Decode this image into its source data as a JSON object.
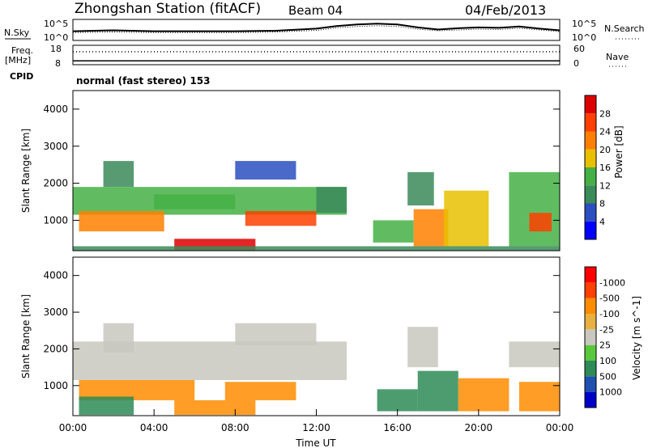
{
  "header": {
    "station": "Zhongshan Station (fitACF)",
    "beam": "Beam 04",
    "date": "04/Feb/2013"
  },
  "top_panels": {
    "nsky_label": "N.Sky",
    "nsearch_label": "N.Search",
    "noise_ticks": [
      "10^5",
      "10^0"
    ],
    "freq_label_1": "Freq.",
    "freq_label_2": "[MHz]",
    "freq_ticks": [
      "18",
      "8"
    ],
    "nave_label": "Nave",
    "nave_ticks": [
      "60",
      "0"
    ],
    "cpid_label": "CPID",
    "cpid_text": "normal (fast stereo) 153"
  },
  "x_axis": {
    "ticks": [
      "00:00",
      "04:00",
      "08:00",
      "12:00",
      "16:00",
      "20:00",
      "00:00"
    ],
    "label": "Time UT"
  },
  "colors": {
    "power_scale": [
      "#0000ff",
      "#2c4fbf",
      "#3b8a5a",
      "#45b045",
      "#e8c000",
      "#ff8000",
      "#ff4000",
      "#dd0000"
    ],
    "velocity_scale": [
      "#0000c8",
      "#2050b0",
      "#2e8b57",
      "#5ac83c",
      "#c8c8c0",
      "#e8b040",
      "#ff8c00",
      "#ff4000",
      "#ff0000"
    ]
  },
  "chart_data": [
    {
      "type": "line",
      "panel": "noise",
      "series": [
        {
          "name": "N.Sky",
          "x": [
            0,
            2,
            4,
            6,
            8,
            10,
            12,
            13,
            14,
            15,
            16,
            17,
            18,
            19,
            20,
            21,
            22,
            23,
            24
          ],
          "y": [
            2.2,
            2.4,
            2.2,
            2.2,
            2.2,
            2.3,
            2.8,
            3.4,
            3.8,
            4.0,
            3.8,
            3.1,
            2.6,
            2.9,
            3.1,
            3.0,
            3.3,
            2.8,
            2.4
          ]
        },
        {
          "name": "N.Search",
          "x": [
            0,
            2,
            4,
            6,
            8,
            10,
            12,
            13,
            14,
            15,
            16,
            17,
            18,
            19,
            20,
            21,
            22,
            23,
            24
          ],
          "y": [
            1.9,
            2.0,
            1.9,
            1.9,
            1.9,
            2.0,
            2.4,
            3.0,
            3.3,
            3.5,
            3.3,
            2.7,
            2.3,
            2.5,
            2.7,
            2.6,
            2.9,
            2.5,
            2.1
          ]
        }
      ],
      "ylim": [
        0,
        5
      ],
      "xlim": [
        0,
        24
      ]
    },
    {
      "type": "line",
      "panel": "frequency_nave",
      "series": [
        {
          "name": "Freq.",
          "x": [
            0,
            24
          ],
          "y": [
            10,
            10
          ]
        },
        {
          "name": "Nave",
          "x": [
            0,
            24
          ],
          "y": [
            40,
            40
          ]
        }
      ]
    },
    {
      "type": "heatmap",
      "panel": "power",
      "title": "",
      "xlabel": "Time UT",
      "ylabel": "Slant Range [km]",
      "yticks": [
        1000,
        2000,
        3000,
        4000
      ],
      "ylim": [
        180,
        4500
      ],
      "xlim": [
        0,
        24
      ],
      "colorbar_label": "Power [dB]",
      "colorbar_ticks": [
        "4",
        "8",
        "12",
        "16",
        "20",
        "24",
        "28"
      ],
      "regions": [
        {
          "t0": 0.0,
          "t1": 13.5,
          "r0": 1150,
          "r1": 1900,
          "value": 12
        },
        {
          "t0": 0.3,
          "t1": 4.5,
          "r0": 700,
          "r1": 1250,
          "value": 22
        },
        {
          "t0": 1.5,
          "t1": 3.0,
          "r0": 1900,
          "r1": 2600,
          "value": 8
        },
        {
          "t0": 4.0,
          "t1": 8.0,
          "r0": 1300,
          "r1": 1700,
          "value": 14
        },
        {
          "t0": 5.0,
          "t1": 9.0,
          "r0": 200,
          "r1": 500,
          "value": 28
        },
        {
          "t0": 8.5,
          "t1": 12.0,
          "r0": 850,
          "r1": 1250,
          "value": 26
        },
        {
          "t0": 8.0,
          "t1": 11.0,
          "r0": 2100,
          "r1": 2600,
          "value": 6
        },
        {
          "t0": 12.0,
          "t1": 13.5,
          "r0": 1200,
          "r1": 1900,
          "value": 8
        },
        {
          "t0": 14.8,
          "t1": 16.8,
          "r0": 400,
          "r1": 1000,
          "value": 12
        },
        {
          "t0": 16.5,
          "t1": 17.8,
          "r0": 1400,
          "r1": 2300,
          "value": 10
        },
        {
          "t0": 16.8,
          "t1": 18.5,
          "r0": 300,
          "r1": 1300,
          "value": 22
        },
        {
          "t0": 18.3,
          "t1": 20.5,
          "r0": 300,
          "r1": 1800,
          "value": 16
        },
        {
          "t0": 21.5,
          "t1": 24.0,
          "r0": 300,
          "r1": 2300,
          "value": 14
        },
        {
          "t0": 22.5,
          "t1": 23.6,
          "r0": 700,
          "r1": 1200,
          "value": 24
        },
        {
          "t0": 0.0,
          "t1": 24.0,
          "r0": 180,
          "r1": 300,
          "value": 10
        }
      ]
    },
    {
      "type": "heatmap",
      "panel": "velocity",
      "xlabel": "Time UT",
      "ylabel": "Slant Range [km]",
      "yticks": [
        1000,
        2000,
        3000,
        4000
      ],
      "ylim": [
        180,
        4500
      ],
      "xlim": [
        0,
        24
      ],
      "colorbar_label": "Velocity [m s^-1]",
      "colorbar_ticks": [
        "-1000",
        "-500",
        "-100",
        "-25",
        "25",
        "100",
        "500",
        "1000"
      ],
      "regions": [
        {
          "t0": 0.0,
          "t1": 13.5,
          "r0": 1150,
          "r1": 2200,
          "value": 0
        },
        {
          "t0": 1.5,
          "t1": 3.0,
          "r0": 1900,
          "r1": 2700,
          "value": 0
        },
        {
          "t0": 0.3,
          "t1": 6.0,
          "r0": 600,
          "r1": 1150,
          "value": -150
        },
        {
          "t0": 0.3,
          "t1": 3.0,
          "r0": 200,
          "r1": 700,
          "value": 200
        },
        {
          "t0": 5.0,
          "t1": 9.0,
          "r0": 200,
          "r1": 600,
          "value": -300
        },
        {
          "t0": 7.5,
          "t1": 11.0,
          "r0": 600,
          "r1": 1100,
          "value": -120
        },
        {
          "t0": 8.0,
          "t1": 12.0,
          "r0": 2100,
          "r1": 2700,
          "value": 0
        },
        {
          "t0": 15.0,
          "t1": 17.0,
          "r0": 300,
          "r1": 900,
          "value": 120
        },
        {
          "t0": 16.5,
          "t1": 18.0,
          "r0": 1500,
          "r1": 2600,
          "value": 0
        },
        {
          "t0": 17.0,
          "t1": 19.0,
          "r0": 300,
          "r1": 1400,
          "value": 200
        },
        {
          "t0": 19.0,
          "t1": 21.5,
          "r0": 300,
          "r1": 1200,
          "value": -120
        },
        {
          "t0": 21.5,
          "t1": 24.0,
          "r0": 1500,
          "r1": 2200,
          "value": 0
        },
        {
          "t0": 22.0,
          "t1": 24.0,
          "r0": 300,
          "r1": 1100,
          "value": -300
        }
      ]
    }
  ]
}
